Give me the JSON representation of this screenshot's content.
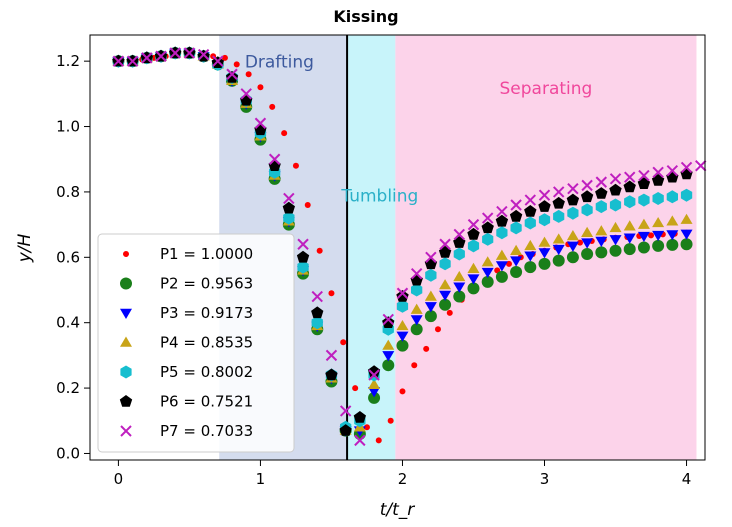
{
  "chart_data": {
    "type": "scatter",
    "title": "Kissing",
    "xlabel": "t/t_r",
    "ylabel": "y/H",
    "xlim": [
      -0.2,
      4.13
    ],
    "ylim": [
      -0.02,
      1.28
    ],
    "xticks": [
      0,
      1,
      2,
      3,
      4
    ],
    "yticks": [
      0.0,
      0.2,
      0.4,
      0.6,
      0.8,
      1.0,
      1.2
    ],
    "grid": false,
    "legend_position": "lower-left",
    "regions": [
      {
        "label": "Drafting",
        "x0": 0.71,
        "x1": 1.61,
        "color": "#d4dcee",
        "label_color": "#3d5a9e"
      },
      {
        "label": "Tumbling",
        "x0": 1.61,
        "x1": 1.95,
        "color": "#c8f4fa",
        "label_color": "#2ab0c8"
      },
      {
        "label": "Separating",
        "x0": 1.95,
        "x1": 4.07,
        "color": "#fcd3ea",
        "label_color": "#f0479c"
      }
    ],
    "vline": {
      "x": 1.61,
      "color": "#000000"
    },
    "series": [
      {
        "name": "P1 = 1.0000",
        "marker": "dot",
        "color": "#ff0000",
        "x": [
          0,
          0.083,
          0.167,
          0.25,
          0.333,
          0.417,
          0.5,
          0.583,
          0.667,
          0.75,
          0.833,
          0.917,
          1.0,
          1.083,
          1.167,
          1.25,
          1.333,
          1.417,
          1.5,
          1.583,
          1.667,
          1.75,
          1.833,
          1.917,
          2.0,
          2.083,
          2.167,
          2.25,
          2.333,
          2.417,
          2.5,
          2.583,
          2.667,
          2.75,
          2.833,
          2.917,
          3.0,
          3.083,
          3.167,
          3.25,
          3.333,
          3.417,
          3.5,
          3.583,
          3.667,
          3.75,
          3.833,
          3.917,
          4.0
        ],
        "y": [
          1.2,
          1.2,
          1.205,
          1.21,
          1.215,
          1.22,
          1.22,
          1.22,
          1.215,
          1.21,
          1.19,
          1.16,
          1.12,
          1.06,
          0.98,
          0.88,
          0.76,
          0.62,
          0.49,
          0.34,
          0.2,
          0.08,
          0.04,
          0.1,
          0.19,
          0.27,
          0.32,
          0.38,
          0.43,
          0.47,
          0.5,
          0.53,
          0.56,
          0.58,
          0.6,
          0.61,
          0.62,
          0.63,
          0.64,
          0.645,
          0.65,
          0.655,
          0.66,
          0.662,
          0.665,
          0.667,
          0.67,
          0.672,
          0.675
        ]
      },
      {
        "name": "P2 = 0.9563",
        "marker": "circle",
        "color": "#1a7f1a",
        "x": [
          0,
          0.1,
          0.2,
          0.3,
          0.4,
          0.5,
          0.6,
          0.7,
          0.8,
          0.9,
          1.0,
          1.1,
          1.2,
          1.3,
          1.4,
          1.5,
          1.6,
          1.7,
          1.8,
          1.9,
          2.0,
          2.1,
          2.2,
          2.3,
          2.4,
          2.5,
          2.6,
          2.7,
          2.8,
          2.9,
          3.0,
          3.1,
          3.2,
          3.3,
          3.4,
          3.5,
          3.6,
          3.7,
          3.8,
          3.9,
          4.0
        ],
        "y": [
          1.2,
          1.2,
          1.21,
          1.215,
          1.225,
          1.225,
          1.215,
          1.19,
          1.14,
          1.06,
          0.96,
          0.84,
          0.7,
          0.55,
          0.38,
          0.22,
          0.07,
          0.06,
          0.17,
          0.27,
          0.33,
          0.38,
          0.42,
          0.455,
          0.48,
          0.505,
          0.525,
          0.54,
          0.555,
          0.57,
          0.58,
          0.59,
          0.6,
          0.61,
          0.615,
          0.62,
          0.625,
          0.63,
          0.635,
          0.638,
          0.64
        ]
      },
      {
        "name": "P3 = 0.9173",
        "marker": "tri-down",
        "color": "#0000ff",
        "x": [
          0,
          0.1,
          0.2,
          0.3,
          0.4,
          0.5,
          0.6,
          0.7,
          0.8,
          0.9,
          1.0,
          1.1,
          1.2,
          1.3,
          1.4,
          1.5,
          1.6,
          1.7,
          1.8,
          1.9,
          2.0,
          2.1,
          2.2,
          2.3,
          2.4,
          2.5,
          2.6,
          2.7,
          2.8,
          2.9,
          3.0,
          3.1,
          3.2,
          3.3,
          3.4,
          3.5,
          3.6,
          3.7,
          3.8,
          3.9,
          4.0
        ],
        "y": [
          1.2,
          1.2,
          1.21,
          1.215,
          1.225,
          1.225,
          1.215,
          1.19,
          1.14,
          1.07,
          0.97,
          0.85,
          0.71,
          0.56,
          0.39,
          0.23,
          0.07,
          0.07,
          0.19,
          0.3,
          0.36,
          0.41,
          0.45,
          0.485,
          0.51,
          0.535,
          0.555,
          0.575,
          0.59,
          0.605,
          0.615,
          0.625,
          0.635,
          0.645,
          0.65,
          0.655,
          0.66,
          0.665,
          0.668,
          0.67,
          0.672
        ]
      },
      {
        "name": "P4 = 0.8535",
        "marker": "tri-up",
        "color": "#c8a418",
        "x": [
          0,
          0.1,
          0.2,
          0.3,
          0.4,
          0.5,
          0.6,
          0.7,
          0.8,
          0.9,
          1.0,
          1.1,
          1.2,
          1.3,
          1.4,
          1.5,
          1.6,
          1.7,
          1.8,
          1.9,
          2.0,
          2.1,
          2.2,
          2.3,
          2.4,
          2.5,
          2.6,
          2.7,
          2.8,
          2.9,
          3.0,
          3.1,
          3.2,
          3.3,
          3.4,
          3.5,
          3.6,
          3.7,
          3.8,
          3.9,
          4.0
        ],
        "y": [
          1.2,
          1.2,
          1.21,
          1.215,
          1.225,
          1.225,
          1.215,
          1.19,
          1.14,
          1.07,
          0.97,
          0.85,
          0.71,
          0.56,
          0.39,
          0.23,
          0.07,
          0.08,
          0.21,
          0.33,
          0.39,
          0.44,
          0.48,
          0.515,
          0.54,
          0.565,
          0.585,
          0.605,
          0.62,
          0.635,
          0.645,
          0.655,
          0.665,
          0.675,
          0.68,
          0.69,
          0.695,
          0.7,
          0.705,
          0.71,
          0.715
        ]
      },
      {
        "name": "P5 = 0.8002",
        "marker": "hexagon",
        "color": "#17becf",
        "x": [
          0,
          0.1,
          0.2,
          0.3,
          0.4,
          0.5,
          0.6,
          0.7,
          0.8,
          0.9,
          1.0,
          1.1,
          1.2,
          1.3,
          1.4,
          1.5,
          1.6,
          1.7,
          1.8,
          1.9,
          2.0,
          2.1,
          2.2,
          2.3,
          2.4,
          2.5,
          2.6,
          2.7,
          2.8,
          2.9,
          3.0,
          3.1,
          3.2,
          3.3,
          3.4,
          3.5,
          3.6,
          3.7,
          3.8,
          3.9,
          4.0
        ],
        "y": [
          1.2,
          1.2,
          1.21,
          1.215,
          1.225,
          1.225,
          1.215,
          1.19,
          1.15,
          1.08,
          0.98,
          0.86,
          0.72,
          0.57,
          0.4,
          0.24,
          0.08,
          0.1,
          0.24,
          0.38,
          0.45,
          0.5,
          0.545,
          0.58,
          0.61,
          0.635,
          0.655,
          0.675,
          0.69,
          0.705,
          0.715,
          0.725,
          0.735,
          0.745,
          0.755,
          0.76,
          0.77,
          0.775,
          0.78,
          0.785,
          0.79
        ]
      },
      {
        "name": "P6 = 0.7521",
        "marker": "pentagon",
        "color": "#000000",
        "x": [
          0,
          0.1,
          0.2,
          0.3,
          0.4,
          0.5,
          0.6,
          0.7,
          0.8,
          0.9,
          1.0,
          1.1,
          1.2,
          1.3,
          1.4,
          1.5,
          1.6,
          1.7,
          1.8,
          1.9,
          2.0,
          2.1,
          2.2,
          2.3,
          2.4,
          2.5,
          2.6,
          2.7,
          2.8,
          2.9,
          3.0,
          3.1,
          3.2,
          3.3,
          3.4,
          3.5,
          3.6,
          3.7,
          3.8,
          3.9,
          4.0
        ],
        "y": [
          1.2,
          1.2,
          1.21,
          1.215,
          1.225,
          1.225,
          1.215,
          1.195,
          1.15,
          1.08,
          0.99,
          0.88,
          0.75,
          0.6,
          0.43,
          0.24,
          0.07,
          0.11,
          0.25,
          0.4,
          0.48,
          0.53,
          0.58,
          0.615,
          0.645,
          0.67,
          0.69,
          0.71,
          0.725,
          0.74,
          0.755,
          0.765,
          0.775,
          0.785,
          0.795,
          0.805,
          0.815,
          0.825,
          0.835,
          0.845,
          0.855
        ]
      },
      {
        "name": "P7 = 0.7033",
        "marker": "x",
        "color": "#bf1fbf",
        "x": [
          0,
          0.1,
          0.2,
          0.3,
          0.4,
          0.5,
          0.6,
          0.7,
          0.8,
          0.9,
          1.0,
          1.1,
          1.2,
          1.3,
          1.4,
          1.5,
          1.6,
          1.7,
          1.8,
          1.9,
          2.0,
          2.1,
          2.2,
          2.3,
          2.4,
          2.5,
          2.6,
          2.7,
          2.8,
          2.9,
          3.0,
          3.1,
          3.2,
          3.3,
          3.4,
          3.5,
          3.6,
          3.7,
          3.8,
          3.9,
          4.0,
          4.1
        ],
        "y": [
          1.2,
          1.2,
          1.21,
          1.215,
          1.225,
          1.225,
          1.22,
          1.2,
          1.16,
          1.1,
          1.01,
          0.9,
          0.78,
          0.64,
          0.48,
          0.3,
          0.13,
          0.04,
          0.24,
          0.41,
          0.49,
          0.55,
          0.6,
          0.64,
          0.67,
          0.7,
          0.72,
          0.74,
          0.76,
          0.775,
          0.79,
          0.8,
          0.81,
          0.82,
          0.83,
          0.84,
          0.845,
          0.85,
          0.86,
          0.865,
          0.875,
          0.88
        ]
      }
    ]
  }
}
